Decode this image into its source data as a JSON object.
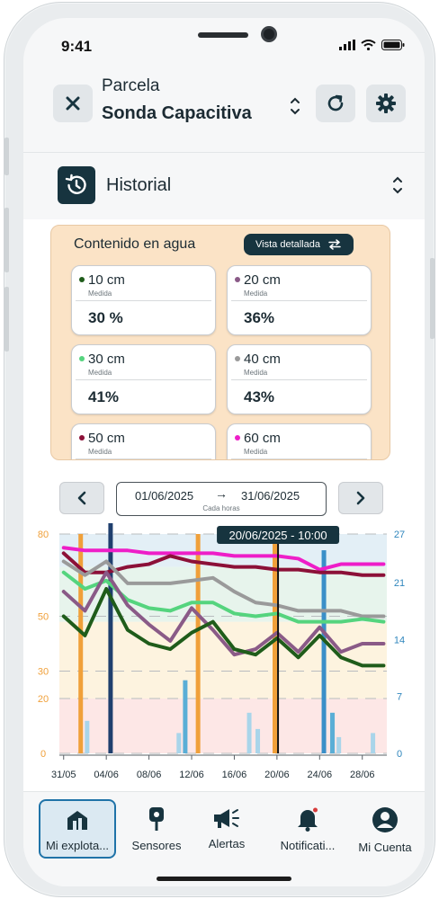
{
  "status_bar": {
    "time": "9:41"
  },
  "header": {
    "subtitle": "Parcela",
    "title": "Sonda Capacitiva"
  },
  "section": {
    "label": "Historial"
  },
  "water": {
    "title": "Contenido en agua",
    "detail_button": "Vista detallada",
    "sensors": [
      {
        "depth": "10 cm",
        "caption": "Medida",
        "value": "30 %",
        "color": "#1f5c1a"
      },
      {
        "depth": "20 cm",
        "caption": "Medida",
        "value": "36%",
        "color": "#8a5a87"
      },
      {
        "depth": "30 cm",
        "caption": "Medida",
        "value": "41%",
        "color": "#55d47e"
      },
      {
        "depth": "40 cm",
        "caption": "Medida",
        "value": "43%",
        "color": "#9a9a9a"
      },
      {
        "depth": "50 cm",
        "caption": "Medida",
        "value": "",
        "color": "#8c1038"
      },
      {
        "depth": "60 cm",
        "caption": "Medida",
        "value": "",
        "color": "#ee1ec8"
      }
    ]
  },
  "date_range": {
    "from": "01/06/2025",
    "arrow": "→",
    "to": "31/06/2025",
    "caption": "Cada horas"
  },
  "chart_data": {
    "type": "line",
    "cursor_label": "20/06/2025 - 10:00",
    "cursor_x": 20.1,
    "x_ticks": [
      {
        "v": 0,
        "t": "31/05"
      },
      {
        "v": 4,
        "t": "04/06"
      },
      {
        "v": 8,
        "t": "08/06"
      },
      {
        "v": 12,
        "t": "12/06"
      },
      {
        "v": 16,
        "t": "16/06"
      },
      {
        "v": 20,
        "t": "20/06"
      },
      {
        "v": 24,
        "t": "24/06"
      },
      {
        "v": 28,
        "t": "28/06"
      }
    ],
    "xlim": [
      -0.4,
      30.3
    ],
    "y_left": {
      "ticks": [
        0,
        20,
        30,
        50,
        80
      ],
      "color": "#f0a03a"
    },
    "y_right": {
      "ticks": [
        0,
        7,
        14,
        21,
        27
      ],
      "color": "#2f86bd",
      "max": 27
    },
    "ylim": [
      0,
      80
    ],
    "bands": [
      {
        "from": 0,
        "to": 20,
        "color": "#fde7e6"
      },
      {
        "from": 20,
        "to": 48,
        "color": "#fdf3df"
      },
      {
        "from": 48,
        "to": 68,
        "color": "#e7f4ec"
      },
      {
        "from": 68,
        "to": 80,
        "color": "#e3eff6"
      }
    ],
    "series": [
      {
        "color": "#ee1ec8",
        "x": [
          0,
          2,
          4,
          6,
          8,
          10,
          12,
          14,
          16,
          18,
          20,
          22,
          24,
          26,
          28,
          30
        ],
        "y": [
          75,
          74,
          74,
          74,
          73,
          73,
          73,
          73,
          72,
          72,
          72,
          71,
          67,
          69,
          69,
          69
        ]
      },
      {
        "color": "#8c1038",
        "x": [
          0,
          2,
          4,
          6,
          8,
          10,
          12,
          14,
          16,
          18,
          20,
          22,
          24,
          26,
          28,
          30
        ],
        "y": [
          73,
          66,
          66,
          68,
          69,
          72,
          70,
          69,
          68,
          68,
          67,
          67,
          66,
          66,
          65,
          65
        ]
      },
      {
        "color": "#9a9a9a",
        "x": [
          0,
          2,
          4,
          6,
          8,
          10,
          12,
          14,
          16,
          18,
          20,
          22,
          24,
          26,
          28,
          30
        ],
        "y": [
          70,
          65,
          70,
          62,
          62,
          62,
          63,
          64,
          59,
          55,
          54,
          52,
          52,
          52,
          50,
          50
        ]
      },
      {
        "color": "#55d47e",
        "x": [
          0,
          2,
          4,
          6,
          8,
          10,
          12,
          14,
          16,
          18,
          20,
          22,
          24,
          26,
          28,
          30
        ],
        "y": [
          66,
          60,
          63,
          56,
          53,
          52,
          55,
          55,
          51,
          50,
          51,
          48,
          48,
          48,
          49,
          48
        ]
      },
      {
        "color": "#8a5a87",
        "x": [
          0,
          2,
          4,
          6,
          8,
          10,
          12,
          14,
          16,
          18,
          20,
          22,
          24,
          26,
          28,
          30
        ],
        "y": [
          59,
          52,
          66,
          54,
          47,
          41,
          53,
          45,
          36,
          38,
          44,
          37,
          46,
          37,
          40,
          40
        ]
      },
      {
        "color": "#1f5c1a",
        "x": [
          0,
          2,
          4,
          6,
          8,
          10,
          12,
          14,
          16,
          18,
          20,
          22,
          24,
          26,
          28,
          30
        ],
        "y": [
          50,
          43,
          60,
          45,
          40,
          38,
          44,
          48,
          38,
          36,
          42,
          35,
          43,
          35,
          32,
          32
        ]
      }
    ],
    "bars": [
      {
        "x": 1.6,
        "v": 27,
        "color": "#f0a03a"
      },
      {
        "x": 2.2,
        "v": 4,
        "color": "#a9d5ea"
      },
      {
        "x": 4.4,
        "v": 35,
        "color": "#1f3f6e"
      },
      {
        "x": 10.8,
        "v": 2.5,
        "color": "#a9d5ea"
      },
      {
        "x": 11.4,
        "v": 9,
        "color": "#5aaed6"
      },
      {
        "x": 12.6,
        "v": 27,
        "color": "#f0a03a"
      },
      {
        "x": 17.4,
        "v": 5,
        "color": "#a9d5ea"
      },
      {
        "x": 18.2,
        "v": 3,
        "color": "#a9d5ea"
      },
      {
        "x": 19.8,
        "v": 27,
        "color": "#f0a03a"
      },
      {
        "x": 24.4,
        "v": 25,
        "color": "#3a8fc8"
      },
      {
        "x": 25.2,
        "v": 5,
        "color": "#5aaed6"
      },
      {
        "x": 25.8,
        "v": 2,
        "color": "#a9d5ea"
      },
      {
        "x": 29.0,
        "v": 2.5,
        "color": "#a9d5ea"
      }
    ]
  },
  "nav": {
    "items": [
      {
        "label": "Mi explota..."
      },
      {
        "label": "Sensores"
      },
      {
        "label": "Alertas"
      },
      {
        "label": "Notificati..."
      },
      {
        "label": "Mi Cuenta"
      }
    ]
  },
  "colors": {
    "dark": "#17343f",
    "accent": "#1f73a8"
  }
}
